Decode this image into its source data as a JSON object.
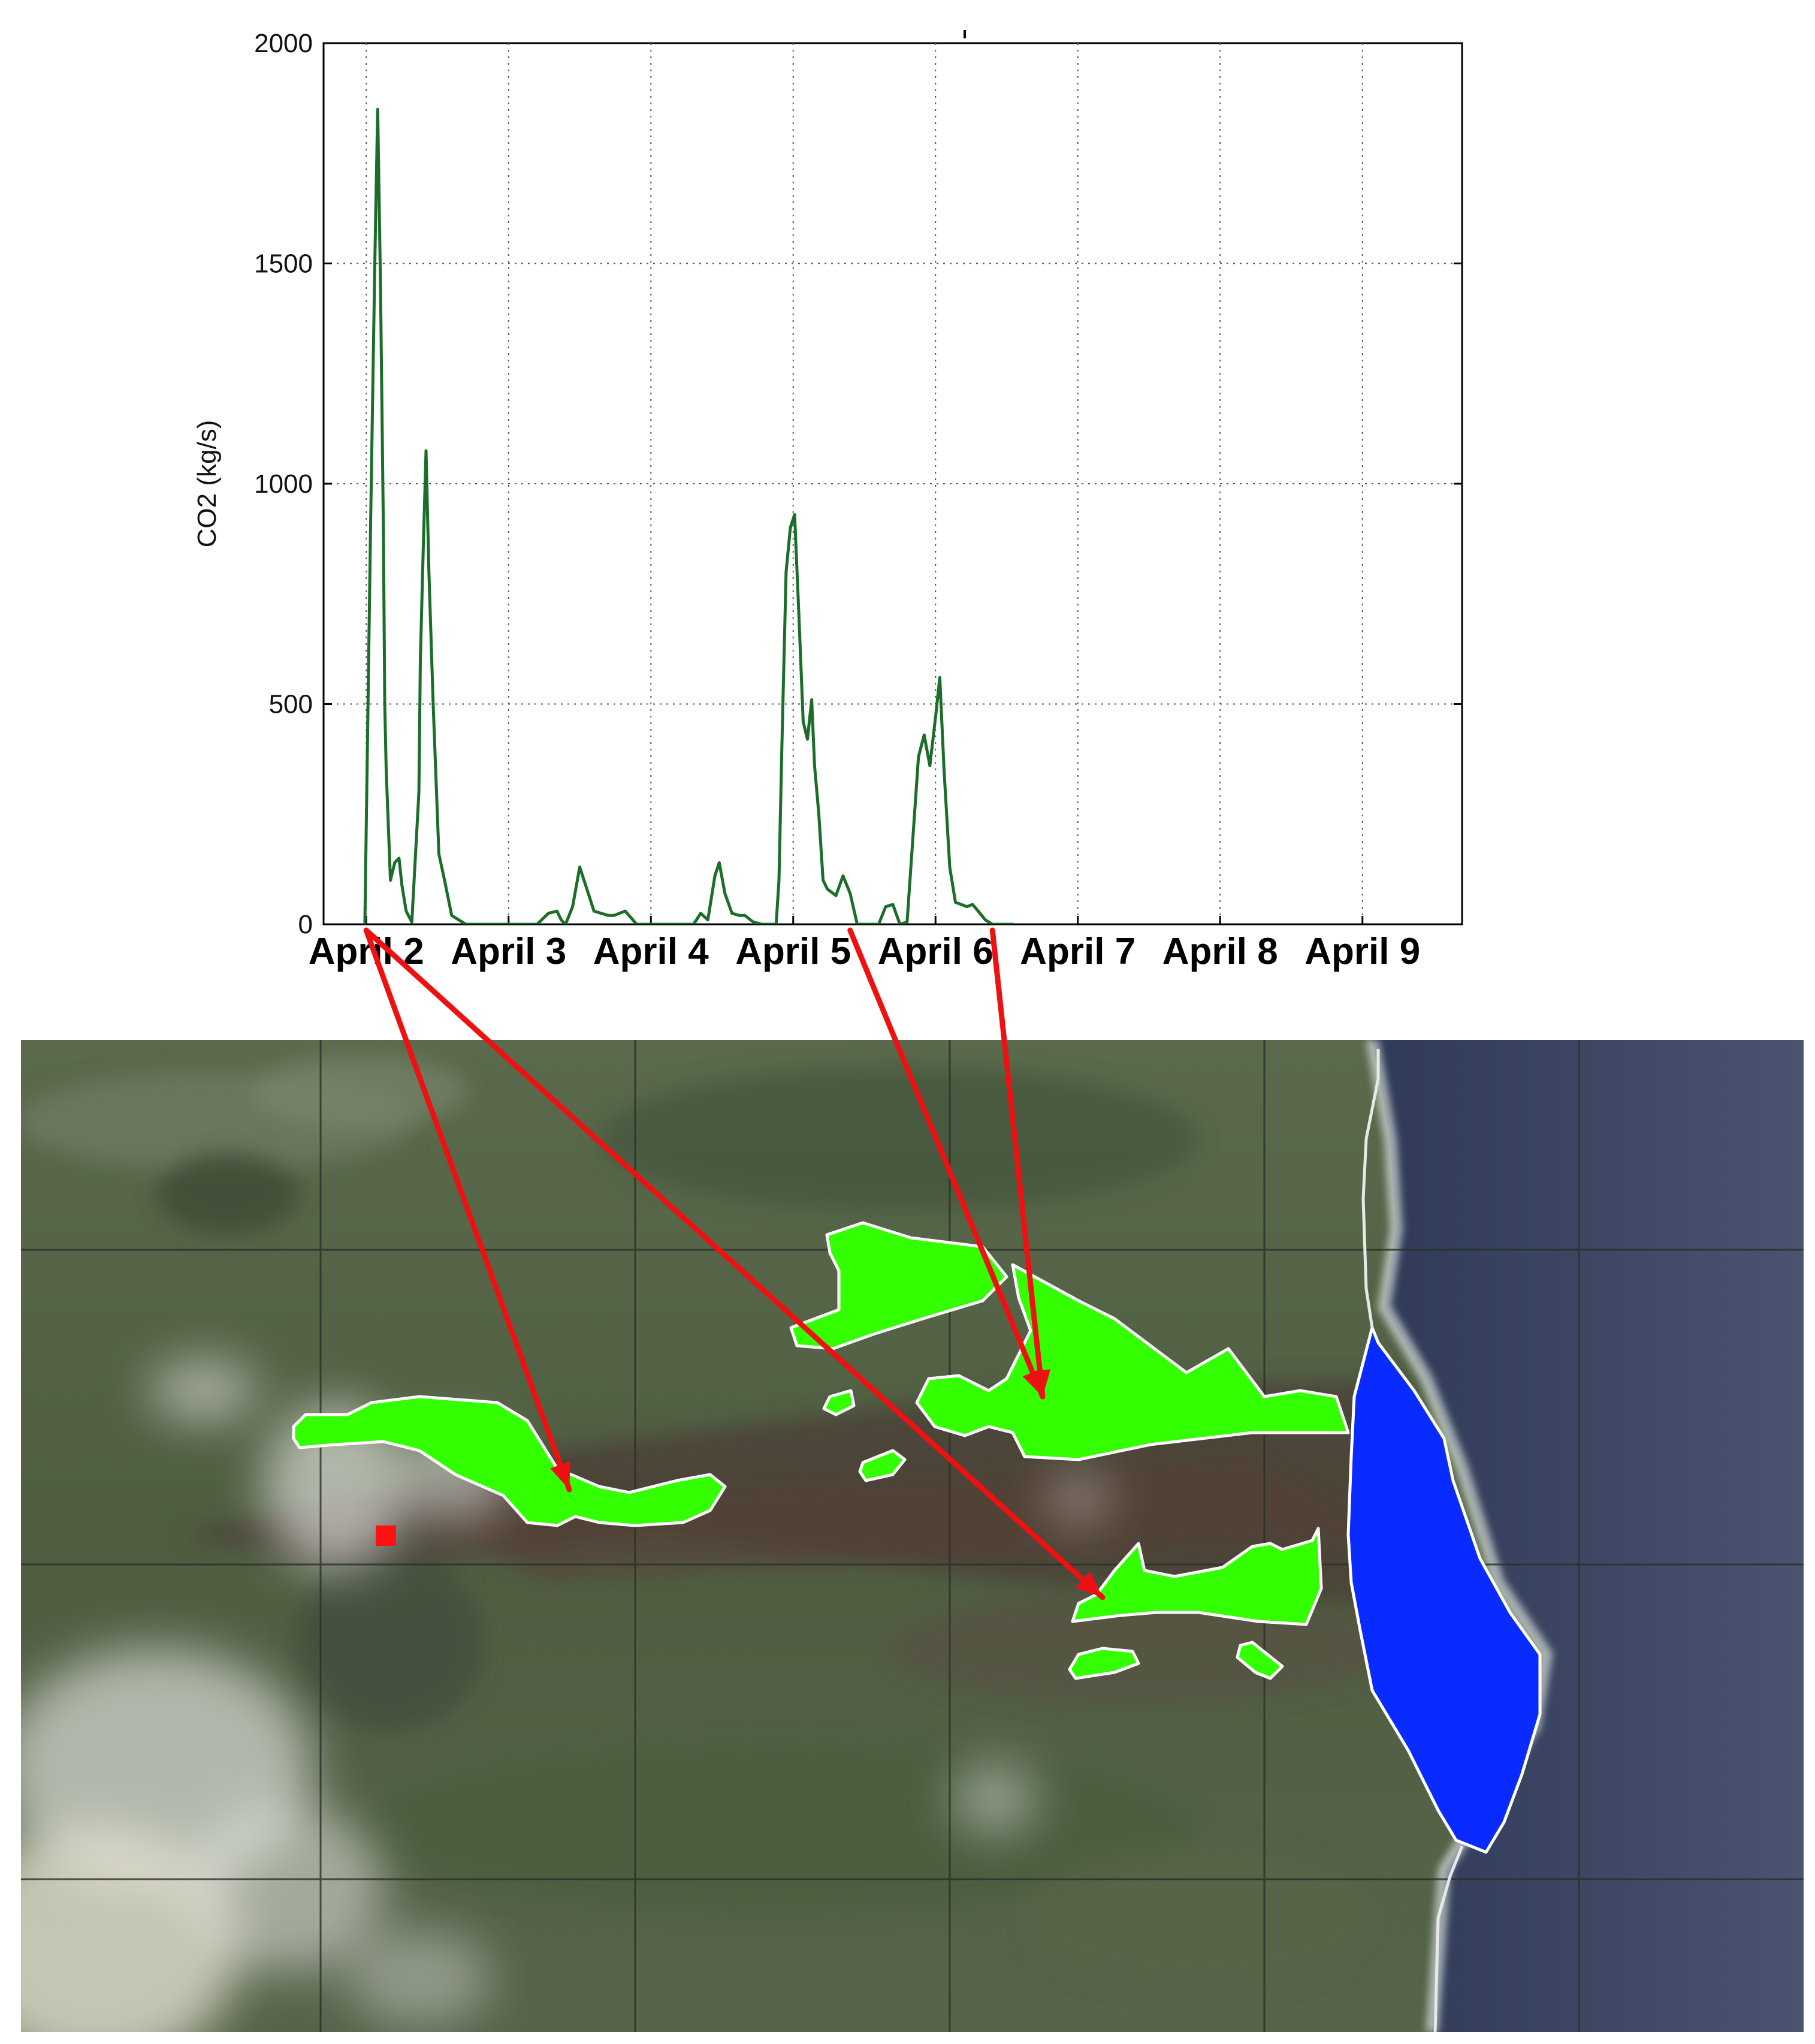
{
  "chart_data": {
    "type": "line",
    "title": "",
    "ylabel": "CO2 (kg/s)",
    "xlabel": "",
    "ylim": [
      0,
      2000
    ],
    "yticks": [
      0,
      500,
      1000,
      1500,
      2000
    ],
    "xlim_days": [
      1.7,
      9.7
    ],
    "xticks": [
      {
        "label": "April 2",
        "day": 2
      },
      {
        "label": "April 3",
        "day": 3
      },
      {
        "label": "April 4",
        "day": 4
      },
      {
        "label": "April 5",
        "day": 5
      },
      {
        "label": "April 6",
        "day": 6
      },
      {
        "label": "April 7",
        "day": 7
      },
      {
        "label": "April 8",
        "day": 8
      },
      {
        "label": "April 9",
        "day": 9
      }
    ],
    "grid": true,
    "series": [
      {
        "color": "#1b6e2a",
        "x": [
          1.99,
          2.03,
          2.06,
          2.08,
          2.1,
          2.12,
          2.13,
          2.14,
          2.17,
          2.2,
          2.23,
          2.25,
          2.28,
          2.32,
          2.37,
          2.38,
          2.4,
          2.42,
          2.44,
          2.47,
          2.51,
          2.55,
          2.6,
          2.7,
          2.8,
          2.9,
          3.0,
          3.1,
          3.2,
          3.28,
          3.34,
          3.37,
          3.4,
          3.45,
          3.5,
          3.55,
          3.6,
          3.65,
          3.7,
          3.74,
          3.78,
          3.82,
          3.86,
          3.9,
          3.95,
          4.0,
          4.05,
          4.1,
          4.15,
          4.22,
          4.3,
          4.35,
          4.4,
          4.45,
          4.48,
          4.52,
          4.57,
          4.62,
          4.66,
          4.72,
          4.78,
          4.88,
          4.9,
          4.92,
          4.95,
          4.98,
          5.01,
          5.04,
          5.07,
          5.1,
          5.13,
          5.15,
          5.18,
          5.21,
          5.24,
          5.3,
          5.35,
          5.4,
          5.45,
          5.5,
          5.55,
          5.6,
          5.65,
          5.7,
          5.75,
          5.8,
          5.88,
          5.92,
          5.96,
          6.0,
          6.03,
          6.06,
          6.1,
          6.14,
          6.18,
          6.22,
          6.26,
          6.3,
          6.35,
          6.4,
          6.43,
          6.46,
          6.5,
          6.55
        ],
        "values": [
          0,
          900,
          1500,
          1850,
          1450,
          900,
          500,
          350,
          100,
          140,
          150,
          90,
          30,
          5,
          300,
          600,
          850,
          1075,
          800,
          500,
          160,
          100,
          20,
          0,
          0,
          0,
          0,
          0,
          0,
          25,
          30,
          10,
          0,
          40,
          130,
          80,
          30,
          25,
          20,
          20,
          25,
          30,
          15,
          0,
          0,
          0,
          0,
          0,
          0,
          0,
          0,
          25,
          10,
          110,
          140,
          70,
          25,
          20,
          20,
          5,
          0,
          0,
          100,
          400,
          800,
          900,
          930,
          700,
          460,
          420,
          510,
          360,
          250,
          100,
          80,
          65,
          110,
          70,
          0,
          0,
          0,
          0,
          40,
          45,
          0,
          5,
          380,
          430,
          360,
          470,
          560,
          350,
          130,
          50,
          45,
          40,
          45,
          30,
          10,
          0,
          0,
          0,
          0,
          0
        ]
      }
    ],
    "annotations": [
      {
        "type": "arrow",
        "from_day": 2.0,
        "to_region": "lava-region-1"
      },
      {
        "type": "arrow",
        "from_day": 2.0,
        "to_region": "lava-region-3"
      },
      {
        "type": "arrow",
        "from_day": 5.4,
        "to_region": "lava-region-2"
      },
      {
        "type": "arrow",
        "from_day": 6.4,
        "to_region": "lava-region-2"
      }
    ]
  },
  "map": {
    "colors": {
      "lava_region": "#33ff00",
      "ocean_entry": "#0a2bff",
      "vent_marker": "#ff1111",
      "arrow": "#ee1111",
      "ocean": "#3f4a66",
      "land": "#5c6b4d"
    },
    "regions": [
      "lava-region-1",
      "lava-region-2",
      "lava-region-3",
      "ocean-entry-region",
      "vent-marker"
    ]
  }
}
